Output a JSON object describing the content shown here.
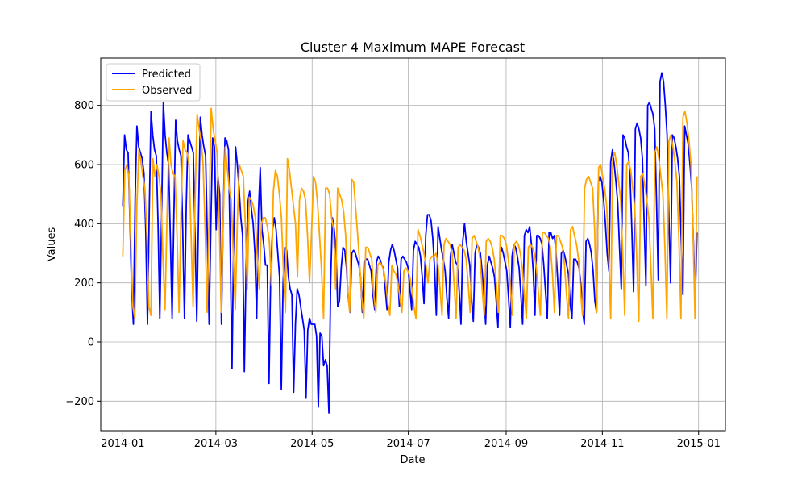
{
  "chart_data": {
    "type": "line",
    "title": "Cluster 4 Maximum MAPE Forecast",
    "xlabel": "Date",
    "ylabel": "Values",
    "x_range": [
      "2014-01-01",
      "2014-12-31"
    ],
    "xlim": [
      "2013-12-18",
      "2015-01-18"
    ],
    "ylim": [
      -300,
      960
    ],
    "x_ticks": [
      "2014-01-01",
      "2014-03-01",
      "2014-05-01",
      "2014-07-01",
      "2014-09-01",
      "2014-11-01",
      "2015-01-01"
    ],
    "x_tick_labels": [
      "2014-01",
      "2014-03",
      "2014-05",
      "2014-07",
      "2014-09",
      "2014-11",
      "2015-01"
    ],
    "y_ticks": [
      -200,
      0,
      200,
      400,
      600,
      800
    ],
    "y_tick_labels": [
      "−200",
      "0",
      "200",
      "400",
      "600",
      "800"
    ],
    "grid": true,
    "legend_position": "top-left",
    "series": [
      {
        "name": "Predicted",
        "color": "#0000ff",
        "values": [
          460,
          700,
          650,
          640,
          420,
          180,
          60,
          490,
          730,
          660,
          640,
          620,
          570,
          380,
          60,
          440,
          780,
          700,
          650,
          630,
          400,
          80,
          420,
          810,
          700,
          640,
          600,
          350,
          80,
          430,
          750,
          680,
          650,
          630,
          380,
          80,
          460,
          700,
          680,
          660,
          640,
          370,
          70,
          430,
          760,
          700,
          660,
          630,
          350,
          60,
          400,
          690,
          660,
          380,
          560,
          500,
          60,
          430,
          690,
          680,
          650,
          300,
          -90,
          380,
          660,
          600,
          520,
          420,
          360,
          -100,
          260,
          470,
          510,
          450,
          400,
          300,
          80,
          440,
          590,
          380,
          330,
          260,
          260,
          -140,
          240,
          380,
          420,
          380,
          300,
          220,
          -160,
          200,
          320,
          310,
          220,
          180,
          160,
          -170,
          60,
          180,
          160,
          120,
          80,
          40,
          -190,
          40,
          80,
          60,
          60,
          60,
          20,
          -220,
          30,
          20,
          -80,
          -60,
          -80,
          -240,
          200,
          420,
          380,
          310,
          120,
          140,
          250,
          320,
          310,
          250,
          150,
          100,
          300,
          310,
          300,
          280,
          260,
          220,
          100,
          270,
          280,
          280,
          260,
          240,
          160,
          110,
          270,
          290,
          280,
          260,
          250,
          180,
          110,
          270,
          310,
          330,
          310,
          280,
          250,
          120,
          280,
          290,
          280,
          270,
          250,
          180,
          110,
          310,
          340,
          330,
          320,
          290,
          220,
          130,
          360,
          430,
          430,
          410,
          350,
          250,
          90,
          390,
          350,
          310,
          280,
          240,
          150,
          80,
          290,
          330,
          300,
          270,
          260,
          170,
          60,
          340,
          400,
          340,
          300,
          260,
          150,
          70,
          300,
          330,
          320,
          300,
          240,
          160,
          60,
          260,
          290,
          270,
          250,
          220,
          140,
          50,
          280,
          320,
          300,
          270,
          240,
          150,
          50,
          290,
          330,
          320,
          290,
          250,
          160,
          60,
          360,
          380,
          370,
          390,
          330,
          240,
          90,
          360,
          360,
          350,
          330,
          260,
          170,
          80,
          370,
          370,
          350,
          360,
          300,
          200,
          90,
          300,
          310,
          290,
          260,
          230,
          130,
          80,
          280,
          280,
          270,
          250,
          200,
          110,
          60,
          340,
          350,
          330,
          300,
          240,
          140,
          100,
          540,
          560,
          540,
          480,
          400,
          300,
          240,
          610,
          650,
          600,
          540,
          470,
          320,
          180,
          700,
          690,
          660,
          640,
          560,
          380,
          170,
          720,
          740,
          720,
          690,
          620,
          400,
          190,
          800,
          810,
          790,
          770,
          720,
          480,
          210,
          880,
          910,
          880,
          800,
          700,
          430,
          200,
          700,
          690,
          660,
          620,
          560,
          350,
          160,
          730,
          700,
          670,
          600,
          520,
          330,
          150,
          370
        ]
      },
      {
        "name": "Observed",
        "color": "#ffa500",
        "values": [
          290,
          580,
          600,
          560,
          340,
          120,
          80,
          460,
          650,
          610,
          560,
          520,
          360,
          120,
          90,
          620,
          560,
          600,
          560,
          500,
          280,
          110,
          420,
          690,
          600,
          570,
          560,
          360,
          100,
          440,
          680,
          650,
          640,
          600,
          360,
          120,
          480,
          770,
          720,
          680,
          600,
          380,
          100,
          430,
          790,
          720,
          680,
          640,
          420,
          100,
          410,
          660,
          590,
          520,
          480,
          300,
          110,
          400,
          600,
          580,
          560,
          400,
          180,
          490,
          480,
          460,
          420,
          280,
          180,
          400,
          420,
          420,
          390,
          340,
          190,
          510,
          580,
          560,
          500,
          420,
          240,
          100,
          620,
          580,
          520,
          460,
          400,
          220,
          480,
          520,
          510,
          480,
          360,
          200,
          370,
          560,
          540,
          470,
          360,
          240,
          80,
          520,
          520,
          500,
          420,
          380,
          180,
          520,
          500,
          480,
          440,
          360,
          180,
          100,
          550,
          540,
          450,
          360,
          260,
          150,
          80,
          320,
          320,
          300,
          280,
          160,
          100,
          260,
          270,
          260,
          240,
          200,
          130,
          90,
          260,
          240,
          230,
          200,
          150,
          100,
          240,
          250,
          240,
          220,
          180,
          120,
          80,
          380,
          360,
          330,
          300,
          260,
          200,
          280,
          290,
          290,
          300,
          260,
          180,
          90,
          330,
          350,
          340,
          330,
          300,
          200,
          80,
          320,
          330,
          320,
          310,
          280,
          200,
          100,
          350,
          360,
          340,
          320,
          280,
          180,
          90,
          340,
          350,
          340,
          320,
          280,
          200,
          100,
          360,
          360,
          350,
          330,
          280,
          190,
          90,
          330,
          340,
          330,
          300,
          250,
          160,
          80,
          320,
          330,
          320,
          300,
          250,
          170,
          90,
          370,
          370,
          360,
          350,
          320,
          230,
          100,
          360,
          360,
          340,
          320,
          260,
          160,
          80,
          380,
          390,
          360,
          330,
          280,
          170,
          90,
          520,
          550,
          560,
          540,
          520,
          380,
          100,
          590,
          600,
          560,
          520,
          460,
          300,
          80,
          620,
          640,
          600,
          540,
          480,
          300,
          90,
          600,
          610,
          580,
          520,
          450,
          280,
          70,
          560,
          570,
          530,
          480,
          420,
          260,
          80,
          640,
          660,
          620,
          560,
          500,
          320,
          80,
          680,
          700,
          660,
          610,
          540,
          340,
          80,
          760,
          780,
          740,
          680,
          600,
          380,
          80,
          560
        ]
      }
    ]
  }
}
